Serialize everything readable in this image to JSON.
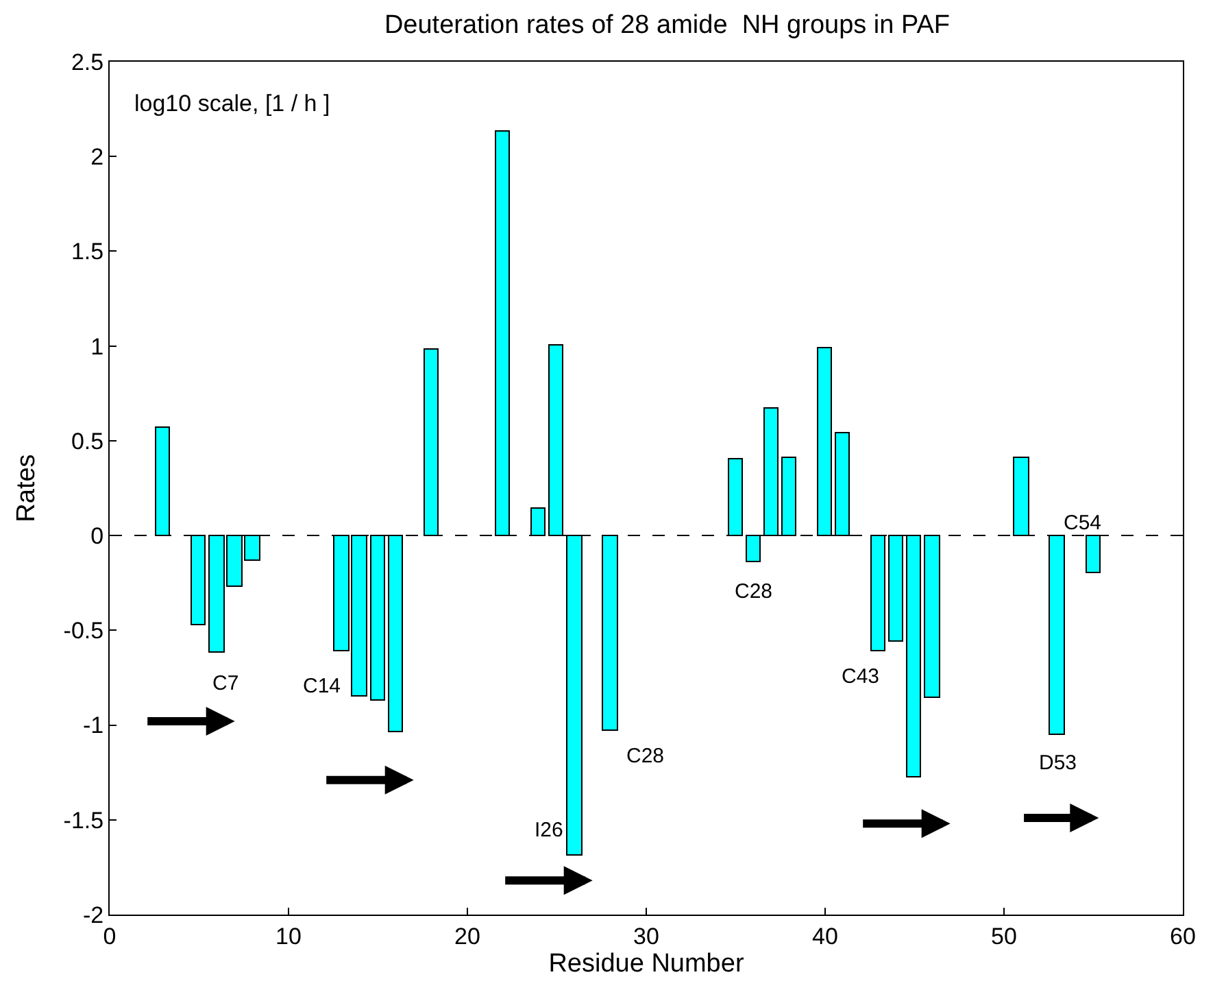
{
  "chart_data": {
    "type": "bar",
    "title": "Deuteration rates of 28 amide  NH groups in PAF",
    "xlabel": "Residue Number",
    "ylabel": "Rates",
    "x": [
      3,
      5,
      6,
      7,
      8,
      13,
      14,
      15,
      16,
      18,
      22,
      24,
      25,
      26,
      28,
      35,
      36,
      37,
      38,
      40,
      41,
      43,
      44,
      45,
      46,
      51,
      53,
      55
    ],
    "values": [
      0.57,
      -0.47,
      -0.62,
      -0.27,
      -0.13,
      -0.61,
      -0.85,
      -0.87,
      -1.04,
      0.98,
      2.13,
      0.14,
      1.0,
      -1.69,
      -1.03,
      0.4,
      -0.14,
      0.67,
      0.41,
      0.99,
      0.54,
      -0.61,
      -0.56,
      -1.28,
      -0.86,
      0.41,
      -1.05,
      -0.2
    ],
    "color": "#00ffff",
    "xlim": [
      0,
      60
    ],
    "xticks": [
      0,
      10,
      20,
      30,
      40,
      50,
      60
    ],
    "ylim": [
      -2,
      2.5
    ],
    "yticks": [
      -2,
      -1.5,
      -1,
      -0.5,
      0,
      0.5,
      1,
      1.5,
      2,
      2.5
    ],
    "ref_lines": [
      {
        "axis": "y",
        "value": 0,
        "color": "#000000",
        "line_style": "dashed"
      }
    ],
    "annotations": [
      "log10 scale, [1 / h ]",
      {
        "text": "C7",
        "x": 6,
        "y": -0.62
      },
      {
        "text": "C14",
        "x": 13,
        "y": -0.61
      },
      {
        "text": "I26",
        "x": 26,
        "y": -1.69
      },
      {
        "text": "C28",
        "x": 28,
        "y": -1.03
      },
      {
        "text": "C28",
        "x": 36,
        "y": -0.14
      },
      {
        "text": "C43",
        "x": 43,
        "y": -0.61
      },
      {
        "text": "D53",
        "x": 53,
        "y": -1.05
      },
      {
        "text": "C54",
        "x": 55,
        "y": -0.2
      }
    ]
  }
}
